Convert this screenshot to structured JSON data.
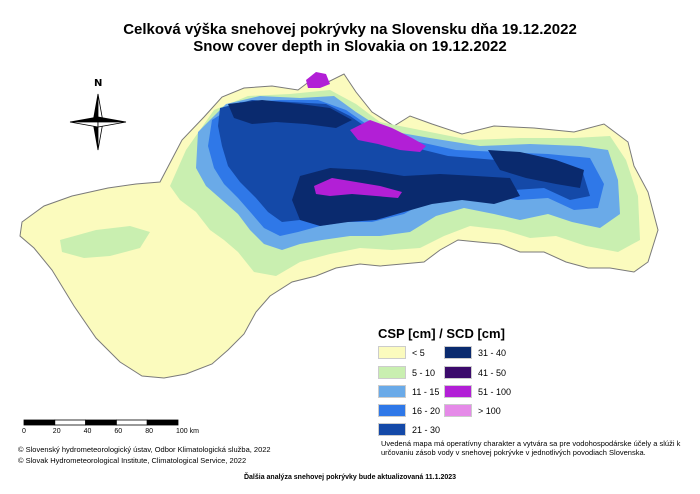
{
  "title_sk": "Celková výška snehovej pokrývky na Slovensku dňa 19.12.2022",
  "title_en": "Snow cover depth in Slovakia on 19.12.2022",
  "compass_label": "N",
  "legend": {
    "title": "CSP [cm] / SCD [cm]",
    "classes": [
      {
        "label": "< 5",
        "color": "#fbfbbe"
      },
      {
        "label": "5 - 10",
        "color": "#c9efb0"
      },
      {
        "label": "11 - 15",
        "color": "#6aaae8"
      },
      {
        "label": "16 - 20",
        "color": "#2f78e8"
      },
      {
        "label": "21 - 30",
        "color": "#1449a8"
      },
      {
        "label": "31 - 40",
        "color": "#0a2a6e"
      },
      {
        "label": "41 - 50",
        "color": "#3b0a6b"
      },
      {
        "label": "51 - 100",
        "color": "#b21fd6"
      },
      {
        "label": "> 100",
        "color": "#e58ae8"
      }
    ]
  },
  "scale_bar": {
    "ticks": [
      "0",
      "20",
      "40",
      "60",
      "80",
      "100 km"
    ]
  },
  "credits": [
    "© Slovenský hydrometeorologický ústav, Odbor Klimatologická služba, 2022",
    "© Slovak Hydrometeorological Institute, Climatological Service, 2022"
  ],
  "note": "Uvedená mapa má operatívny charakter a vytvára sa pre vodohospodárske účely a slúži k určovaniu zásob vody v snehovej pokrývke v jednotlivých povodiach Slovenska.",
  "footer": "Ďalšia analýza snehovej pokrývky bude aktualizovaná 11.1.2023"
}
